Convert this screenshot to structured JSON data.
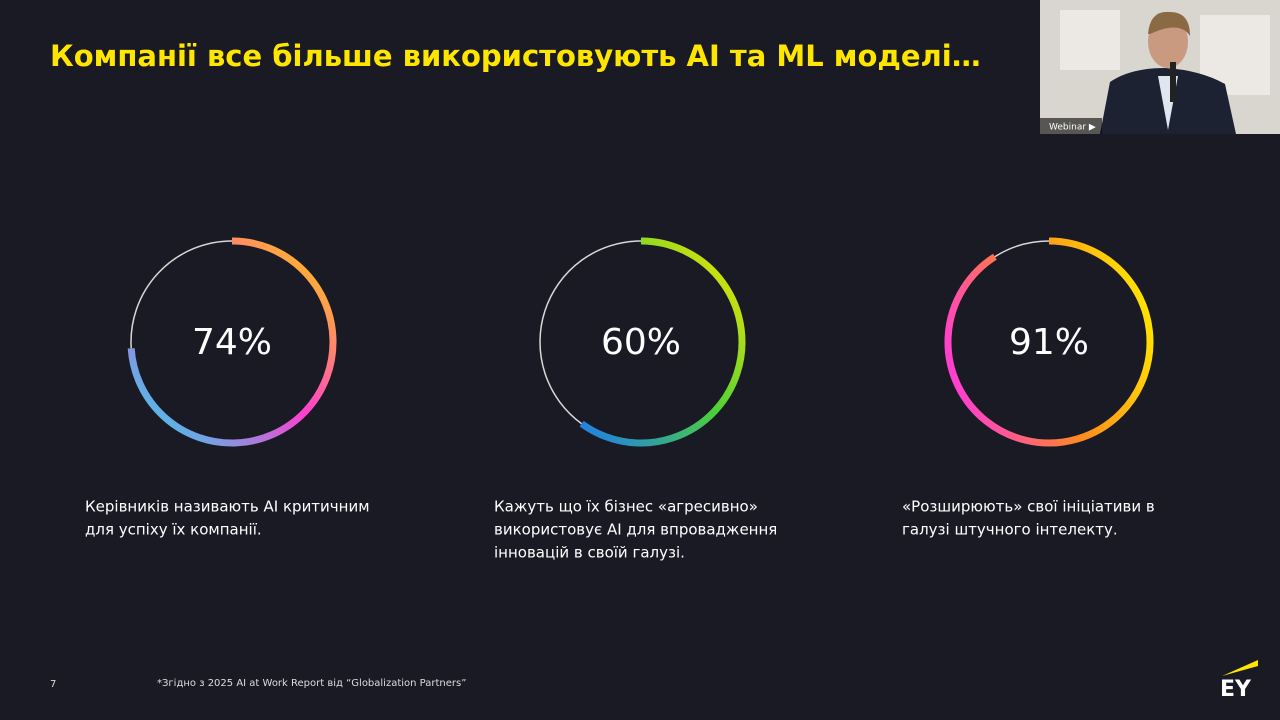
{
  "title": "Компанії все більше використовують AI та ML моделі…",
  "chart_data": [
    {
      "type": "donut",
      "values": [
        74
      ],
      "value_labels": [
        "74%"
      ],
      "colors": [
        "#ffd400",
        "#ff3fd0",
        "#1ee0f0"
      ],
      "caption": [
        "Керівників називають AI критичним",
        "для успіху їх компанії."
      ]
    },
    {
      "type": "donut",
      "values": [
        60
      ],
      "value_labels": [
        "60%"
      ],
      "colors": [
        "#ffe600",
        "#4cd137",
        "#1e7cf0"
      ],
      "caption": [
        "Кажуть що їх бізнес «агресивно»",
        "використовує AI для впровадження",
        "інновацій в своїй галузі."
      ]
    },
    {
      "type": "donut",
      "values": [
        91
      ],
      "value_labels": [
        "91%"
      ],
      "colors": [
        "#ffe600",
        "#ff8a1e",
        "#ff3fd0"
      ],
      "caption": [
        "«Розширюють» свої ініціативи в",
        "галузі штучного інтелекту."
      ]
    }
  ],
  "footnote": "*Згідно з 2025 AI at Work Report від “Globalization Partners”",
  "page_number": "7",
  "logo": "EY",
  "webinar_label": "Webinar ▶"
}
